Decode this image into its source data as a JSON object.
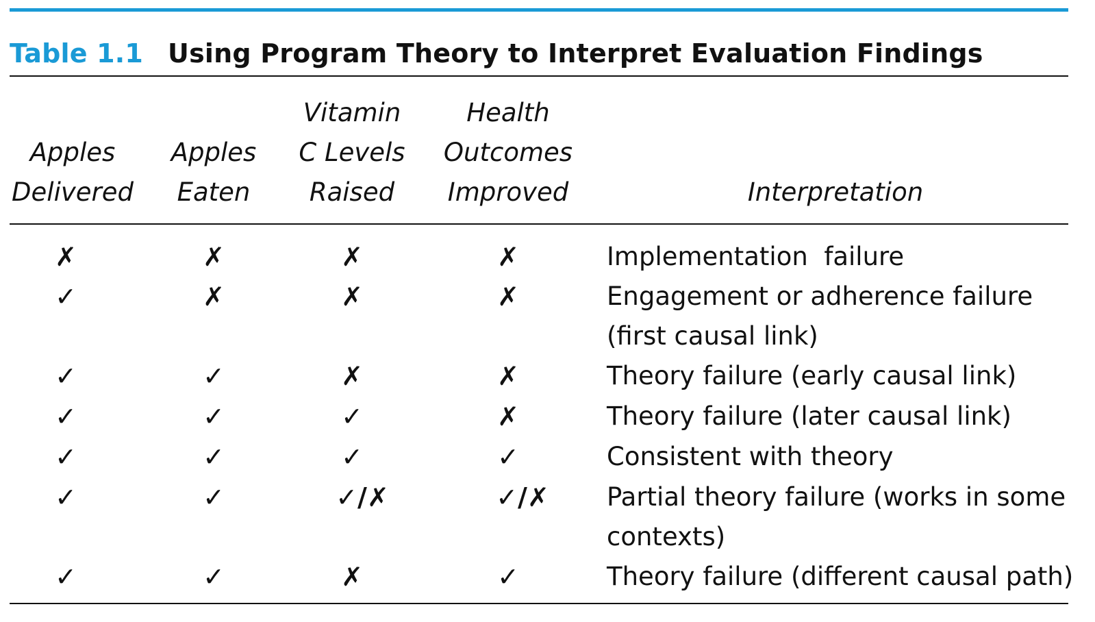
{
  "table": {
    "label": "Table 1.1",
    "title": "Using Program Theory to Interpret Evaluation Findings",
    "accent_color": "#1a9ad6",
    "headers": {
      "apples_delivered": [
        "Apples",
        "Delivered"
      ],
      "apples_eaten": [
        "Apples",
        "Eaten"
      ],
      "vitamin_c": [
        "Vitamin",
        "C Levels",
        "Raised"
      ],
      "health_outcomes": [
        "Health",
        "Outcomes",
        "Improved"
      ],
      "interpretation": [
        "Interpretation"
      ]
    },
    "rows": [
      {
        "apples_delivered": "✗",
        "apples_eaten": "✗",
        "vitamin_c": "✗",
        "health_outcomes": "✗",
        "interpretation": [
          "Implementation  failure"
        ]
      },
      {
        "apples_delivered": "✓",
        "apples_eaten": "✗",
        "vitamin_c": "✗",
        "health_outcomes": "✗",
        "interpretation": [
          "Engagement or adherence failure",
          "(first causal link)"
        ]
      },
      {
        "apples_delivered": "✓",
        "apples_eaten": "✓",
        "vitamin_c": "✗",
        "health_outcomes": "✗",
        "interpretation": [
          "Theory failure (early causal link)"
        ]
      },
      {
        "apples_delivered": "✓",
        "apples_eaten": "✓",
        "vitamin_c": "✓",
        "health_outcomes": "✗",
        "interpretation": [
          "Theory failure (later causal link)"
        ]
      },
      {
        "apples_delivered": "✓",
        "apples_eaten": "✓",
        "vitamin_c": "✓",
        "health_outcomes": "✓",
        "interpretation": [
          "Consistent with theory"
        ]
      },
      {
        "apples_delivered": "✓",
        "apples_eaten": "✓",
        "vitamin_c": "✓/✗",
        "health_outcomes": "✓/✗",
        "interpretation": [
          "Partial theory failure (works in some",
          "contexts)"
        ]
      },
      {
        "apples_delivered": "✓",
        "apples_eaten": "✓",
        "vitamin_c": "✗",
        "health_outcomes": "✓",
        "interpretation": [
          "Theory failure (different causal path)"
        ]
      }
    ]
  }
}
